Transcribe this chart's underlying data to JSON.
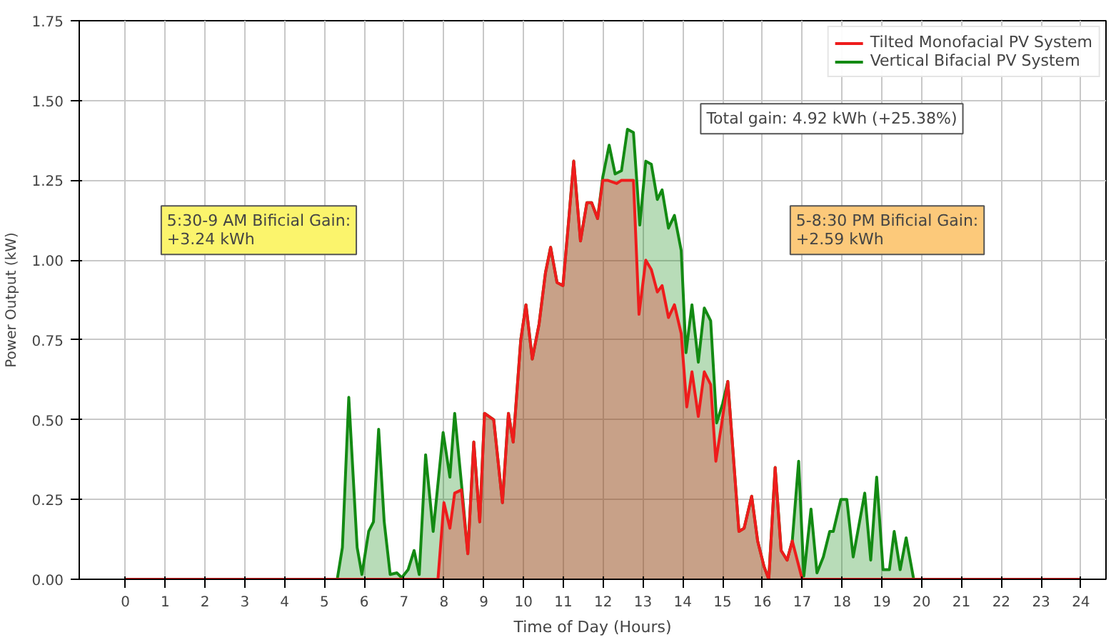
{
  "chart_data": {
    "type": "area",
    "xlabel": "Time of Day (Hours)",
    "ylabel": "Power Output (kW)",
    "xlim": [
      -1.16,
      24.63
    ],
    "xticks": [
      0,
      1,
      2,
      3,
      4,
      5,
      6,
      7,
      8,
      9,
      10,
      11,
      12,
      13,
      14,
      15,
      16,
      17,
      18,
      19,
      20,
      21,
      22,
      23,
      24
    ],
    "ylim": [
      0,
      1.75
    ],
    "yticks": [
      {
        "value": 0,
        "label": "0.00"
      },
      {
        "value": 0.25,
        "label": "0.25"
      },
      {
        "value": 0.5,
        "label": "0.50"
      },
      {
        "value": 0.75,
        "label": "0.75"
      },
      {
        "value": 1,
        "label": "1.00"
      },
      {
        "value": 1.25,
        "label": "1.25"
      },
      {
        "value": 1.5,
        "label": "1.50"
      },
      {
        "value": 1.75,
        "label": "1.75"
      }
    ],
    "grid": true,
    "legend": "top right",
    "annotations": [
      "5:30-9 AM Bificial Gain:\n+3.24 kWh",
      "5-8:30 PM Bificial Gain:\n+2.59 kWh",
      "Total gain: 4.92 kWh (+25.38%)"
    ],
    "series": [
      {
        "name": "Vertical Bifacial PV System",
        "color": "#138a13",
        "x": [
          0,
          5.32,
          5.45,
          5.61,
          5.82,
          5.94,
          6.11,
          6.23,
          6.36,
          6.5,
          6.65,
          6.82,
          6.94,
          7.1,
          7.25,
          7.38,
          7.54,
          7.73,
          7.98,
          8.15,
          8.27,
          8.44,
          8.6,
          8.75,
          8.9,
          9.02,
          9.25,
          9.47,
          9.62,
          9.74,
          9.93,
          10.06,
          10.22,
          10.39,
          10.55,
          10.68,
          10.84,
          10.99,
          11.11,
          11.26,
          11.43,
          11.59,
          11.71,
          11.86,
          11.99,
          12.15,
          12.3,
          12.46,
          12.61,
          12.76,
          12.92,
          13.07,
          13.21,
          13.36,
          13.48,
          13.64,
          13.79,
          13.96,
          14.08,
          14.23,
          14.39,
          14.54,
          14.7,
          14.85,
          15.0,
          15.13,
          15.41,
          15.54,
          15.73,
          15.88,
          16.04,
          16.16,
          16.32,
          16.47,
          16.62,
          16.75,
          16.91,
          17.04,
          17.22,
          17.37,
          17.53,
          17.69,
          17.78,
          17.97,
          18.12,
          18.28,
          18.57,
          18.72,
          18.87,
          19.03,
          19.19,
          19.31,
          19.46,
          19.61,
          19.8,
          24
        ],
        "values": [
          0,
          0,
          0.1,
          0.57,
          0.1,
          0.015,
          0.15,
          0.18,
          0.47,
          0.18,
          0.015,
          0.02,
          0.005,
          0.03,
          0.09,
          0.015,
          0.39,
          0.15,
          0.46,
          0.32,
          0.52,
          0.3,
          0.08,
          0.43,
          0.18,
          0.52,
          0.5,
          0.24,
          0.52,
          0.43,
          0.75,
          0.86,
          0.69,
          0.8,
          0.96,
          1.04,
          0.93,
          0.92,
          1.09,
          1.31,
          1.06,
          1.18,
          1.18,
          1.13,
          1.26,
          1.36,
          1.27,
          1.28,
          1.41,
          1.4,
          1.11,
          1.31,
          1.3,
          1.19,
          1.22,
          1.1,
          1.14,
          1.03,
          0.71,
          0.86,
          0.68,
          0.85,
          0.81,
          0.49,
          0.55,
          0.62,
          0.15,
          0.16,
          0.26,
          0.12,
          0.04,
          0,
          0.35,
          0.09,
          0.06,
          0.12,
          0.37,
          0.01,
          0.22,
          0.02,
          0.07,
          0.15,
          0.15,
          0.25,
          0.25,
          0.07,
          0.27,
          0.06,
          0.32,
          0.03,
          0.03,
          0.15,
          0.03,
          0.13,
          0,
          0
        ]
      },
      {
        "name": "Tilted Monofacial PV System",
        "color": "#ee1c1c",
        "x": [
          0,
          7.85,
          8.0,
          8.15,
          8.27,
          8.44,
          8.6,
          8.75,
          8.9,
          9.02,
          9.25,
          9.47,
          9.62,
          9.74,
          9.93,
          10.06,
          10.22,
          10.39,
          10.55,
          10.68,
          10.84,
          10.99,
          11.11,
          11.26,
          11.43,
          11.59,
          11.71,
          11.86,
          11.99,
          12.11,
          12.34,
          12.46,
          12.76,
          12.9,
          13.07,
          13.21,
          13.36,
          13.48,
          13.64,
          13.79,
          13.96,
          14.1,
          14.23,
          14.39,
          14.54,
          14.7,
          14.83,
          14.98,
          15.13,
          15.41,
          15.54,
          15.73,
          15.88,
          16.04,
          16.16,
          16.32,
          16.47,
          16.62,
          16.75,
          17.0,
          24
        ],
        "values": [
          0,
          0,
          0.24,
          0.16,
          0.27,
          0.28,
          0.08,
          0.43,
          0.18,
          0.52,
          0.5,
          0.24,
          0.52,
          0.43,
          0.75,
          0.86,
          0.69,
          0.8,
          0.96,
          1.04,
          0.93,
          0.92,
          1.09,
          1.31,
          1.06,
          1.18,
          1.18,
          1.13,
          1.25,
          1.25,
          1.24,
          1.25,
          1.25,
          0.83,
          1.0,
          0.97,
          0.9,
          0.92,
          0.82,
          0.86,
          0.77,
          0.54,
          0.65,
          0.51,
          0.65,
          0.61,
          0.37,
          0.49,
          0.62,
          0.15,
          0.16,
          0.26,
          0.12,
          0.04,
          0,
          0.35,
          0.09,
          0.06,
          0.12,
          0,
          0
        ]
      }
    ]
  }
}
